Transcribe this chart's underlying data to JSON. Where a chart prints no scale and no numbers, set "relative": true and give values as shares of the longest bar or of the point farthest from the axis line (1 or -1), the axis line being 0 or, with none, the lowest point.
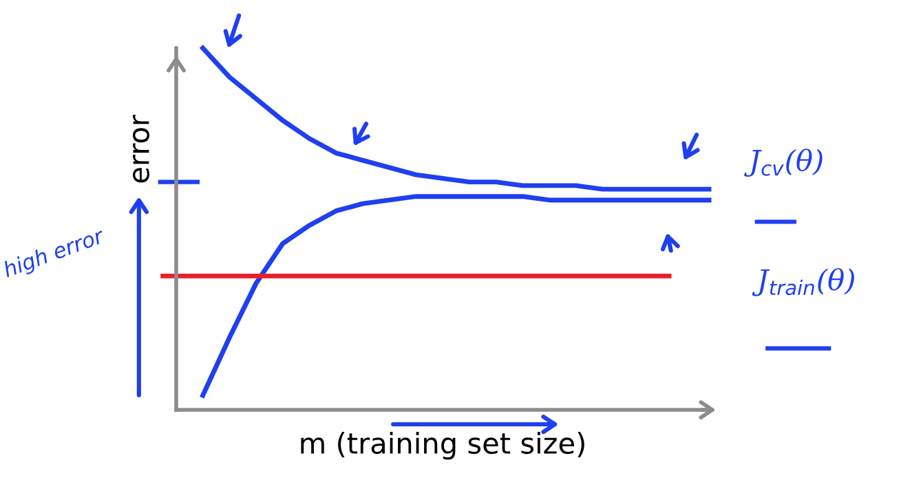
{
  "chart_data": {
    "type": "line",
    "relative": true,
    "xlabel": "m (training set size)",
    "ylabel": "error",
    "categories": [
      null,
      null,
      null,
      null,
      null,
      null,
      null,
      null,
      null,
      null,
      null,
      null,
      null,
      null,
      null,
      null,
      null,
      null,
      null,
      null,
      null
    ],
    "series": [
      {
        "name": "J$_{cv}$(θ)",
        "color": "#1f3ff0",
        "values": [
          null,
          1.0,
          0.92,
          0.86,
          0.8,
          0.75,
          0.71,
          0.69,
          0.67,
          0.65,
          0.64,
          0.63,
          0.63,
          0.62,
          0.62,
          0.62,
          0.61,
          0.61,
          0.61,
          0.61,
          0.61
        ]
      },
      {
        "name": "J$_{train}$(θ)",
        "color": "#1f3ff0",
        "values": [
          null,
          0.04,
          0.2,
          0.35,
          0.46,
          0.51,
          0.55,
          0.57,
          0.58,
          0.59,
          0.59,
          0.59,
          0.59,
          0.59,
          0.58,
          0.58,
          0.58,
          0.58,
          0.58,
          0.58,
          0.58
        ]
      }
    ],
    "ref_lines": [
      {
        "axis": "y",
        "value": 0.37,
        "color": "#e8202a"
      }
    ],
    "annotations": [
      "high error"
    ]
  }
}
